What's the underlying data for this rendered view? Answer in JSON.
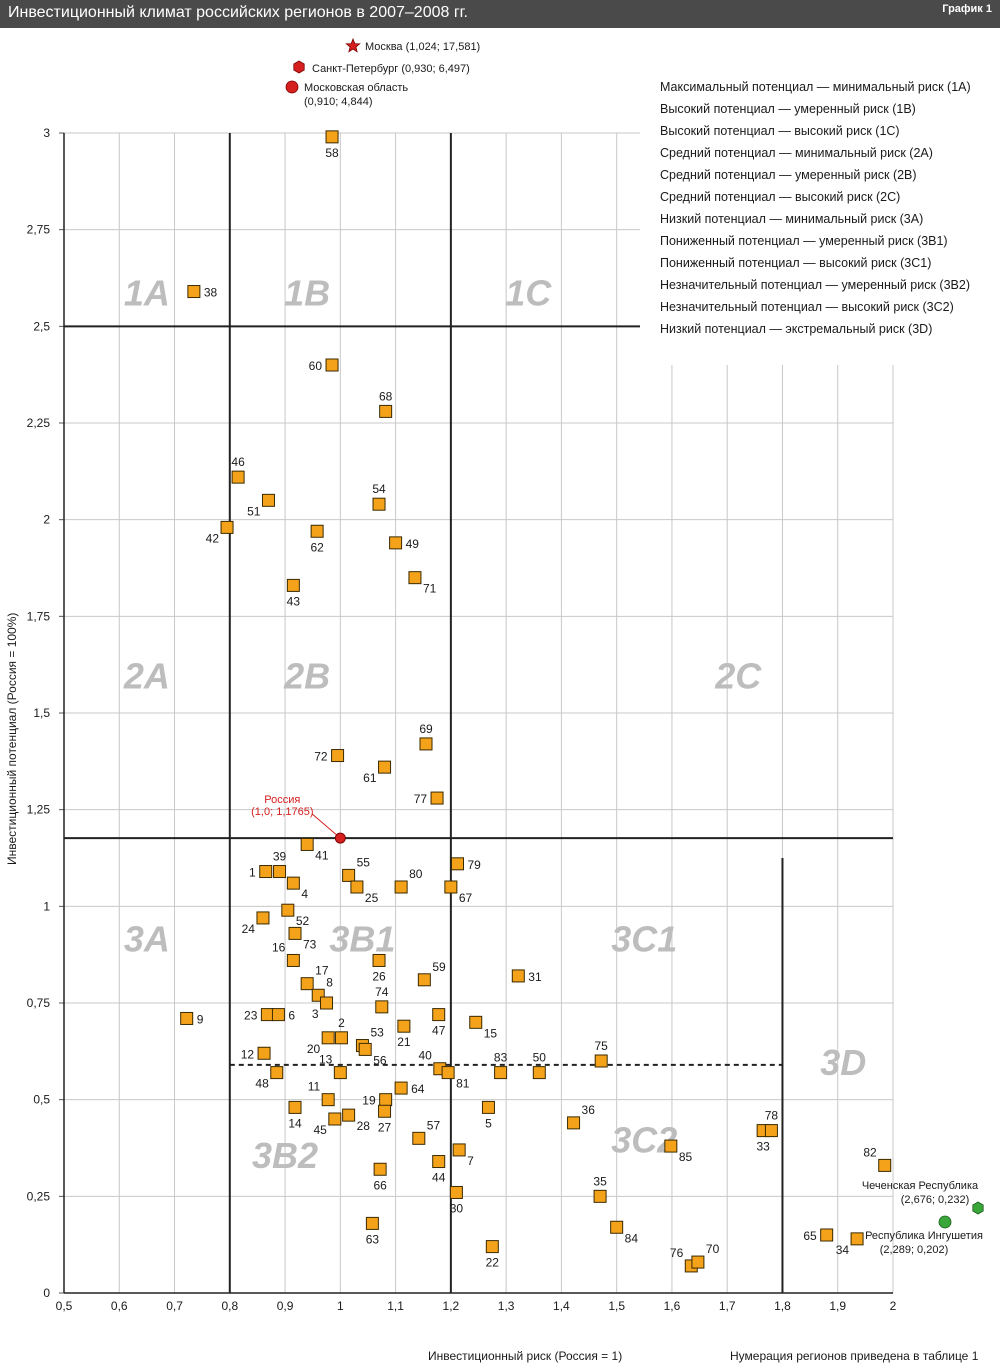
{
  "header": {
    "title": "Инвестиционный климат российских регионов в 2007–2008 гг.",
    "graph_label": "График 1"
  },
  "chart_data": {
    "type": "scatter",
    "xlabel": "Инвестиционный риск (Россия = 1)",
    "ylabel": "Инвестиционный потенциал (Россия = 100%)",
    "footnote": "Нумерация регионов приведена в таблице 1",
    "xlim": [
      0.5,
      2.0
    ],
    "ylim": [
      0,
      3
    ],
    "x_ticks": [
      "0,5",
      "0,6",
      "0,7",
      "0,8",
      "0,9",
      "1",
      "1,1",
      "1,2",
      "1,3",
      "1,4",
      "1,5",
      "1,6",
      "1,7",
      "1,8",
      "1,9",
      "2"
    ],
    "y_ticks": [
      "0",
      "0,25",
      "0,5",
      "0,75",
      "1",
      "1,25",
      "1,5",
      "1,75",
      "2",
      "2,25",
      "2,5",
      "2,75",
      "3"
    ],
    "grid": true,
    "marker_color": "#f5a21b",
    "legend": [
      "Максимальный потенциал — минимальный риск (1A)",
      "Высокий потенциал — умеренный риск (1B)",
      "Высокий потенциал — высокий риск (1C)",
      "Средний потенциал — минимальный риск (2A)",
      "Средний потенциал — умеренный риск (2B)",
      "Средний потенциал — высокий риск (2C)",
      "Низкий потенциал — минимальный риск (3A)",
      "Пониженный потенциал — умеренный риск (3B1)",
      "Пониженный потенциал — высокий риск (3C1)",
      "Незначительный потенциал — умеренный риск (3B2)",
      "Незначительный потенциал — высокий риск (3C2)",
      "Низкий потенциал — экстремальный риск (3D)"
    ],
    "zones": [
      {
        "label": "1A",
        "x": 0.65,
        "y": 2.59
      },
      {
        "label": "1B",
        "x": 0.94,
        "y": 2.59
      },
      {
        "label": "1C",
        "x": 1.34,
        "y": 2.59
      },
      {
        "label": "2A",
        "x": 0.65,
        "y": 1.6
      },
      {
        "label": "2B",
        "x": 0.94,
        "y": 1.6
      },
      {
        "label": "2C",
        "x": 1.72,
        "y": 1.6
      },
      {
        "label": "3A",
        "x": 0.65,
        "y": 0.92
      },
      {
        "label": "3B1",
        "x": 1.04,
        "y": 0.92
      },
      {
        "label": "3C1",
        "x": 1.55,
        "y": 0.92
      },
      {
        "label": "3D",
        "x": 1.91,
        "y": 0.6
      },
      {
        "label": "3B2",
        "x": 0.9,
        "y": 0.36
      },
      {
        "label": "3C2",
        "x": 1.55,
        "y": 0.4
      }
    ],
    "outliers": [
      {
        "label": "Москва (1,024; 17,581)",
        "shape": "star",
        "color": "#d62020"
      },
      {
        "label": "Санкт-Петербург (0,930; 6,497)",
        "shape": "hexagon",
        "color": "#d62020"
      },
      {
        "label": "Московская область",
        "label2": "(0,910; 4,844)",
        "shape": "circle",
        "color": "#d62020"
      }
    ],
    "russia": {
      "label": "Россия",
      "label2": "(1,0; 1,1765)",
      "x": 1.0,
      "y": 1.1765,
      "color": "#d62020"
    },
    "green_points": [
      {
        "label": "Чеченская Республика",
        "label2": "(2,676; 0,232)",
        "color": "#3aa63a"
      },
      {
        "label": "Республика Ингушетия",
        "label2": "(2,289; 0,202)",
        "color": "#3aa63a"
      }
    ],
    "points": [
      {
        "id": "58",
        "x": 0.985,
        "y": 2.99,
        "lp": "b"
      },
      {
        "id": "38",
        "x": 0.735,
        "y": 2.59,
        "lp": "r"
      },
      {
        "id": "60",
        "x": 0.985,
        "y": 2.4,
        "lp": "l"
      },
      {
        "id": "68",
        "x": 1.082,
        "y": 2.28,
        "lp": "t"
      },
      {
        "id": "46",
        "x": 0.815,
        "y": 2.11,
        "lp": "t"
      },
      {
        "id": "51",
        "x": 0.87,
        "y": 2.05,
        "lp": "bl"
      },
      {
        "id": "54",
        "x": 1.07,
        "y": 2.04,
        "lp": "t"
      },
      {
        "id": "42",
        "x": 0.795,
        "y": 1.98,
        "lp": "bl"
      },
      {
        "id": "62",
        "x": 0.958,
        "y": 1.97,
        "lp": "b"
      },
      {
        "id": "49",
        "x": 1.1,
        "y": 1.94,
        "lp": "r"
      },
      {
        "id": "71",
        "x": 1.135,
        "y": 1.85,
        "lp": "br"
      },
      {
        "id": "43",
        "x": 0.915,
        "y": 1.83,
        "lp": "b"
      },
      {
        "id": "69",
        "x": 1.155,
        "y": 1.42,
        "lp": "t"
      },
      {
        "id": "72",
        "x": 0.995,
        "y": 1.39,
        "lp": "l"
      },
      {
        "id": "61",
        "x": 1.08,
        "y": 1.36,
        "lp": "bl"
      },
      {
        "id": "77",
        "x": 1.175,
        "y": 1.28,
        "lp": "l"
      },
      {
        "id": "41",
        "x": 0.94,
        "y": 1.16,
        "lp": "br"
      },
      {
        "id": "79",
        "x": 1.212,
        "y": 1.11,
        "lp": "r"
      },
      {
        "id": "1",
        "x": 0.865,
        "y": 1.09,
        "lp": "l"
      },
      {
        "id": "39",
        "x": 0.89,
        "y": 1.09,
        "lp": "t"
      },
      {
        "id": "55",
        "x": 1.015,
        "y": 1.08,
        "lp": "tr"
      },
      {
        "id": "80",
        "x": 1.11,
        "y": 1.05,
        "lp": "tr"
      },
      {
        "id": "4",
        "x": 0.915,
        "y": 1.06,
        "lp": "br"
      },
      {
        "id": "25",
        "x": 1.03,
        "y": 1.05,
        "lp": "br"
      },
      {
        "id": "67",
        "x": 1.2,
        "y": 1.05,
        "lp": "br"
      },
      {
        "id": "52",
        "x": 0.905,
        "y": 0.99,
        "lp": "br"
      },
      {
        "id": "24",
        "x": 0.86,
        "y": 0.97,
        "lp": "bl"
      },
      {
        "id": "73",
        "x": 0.918,
        "y": 0.93,
        "lp": "br"
      },
      {
        "id": "16",
        "x": 0.915,
        "y": 0.86,
        "lp": "tl"
      },
      {
        "id": "26",
        "x": 1.07,
        "y": 0.86,
        "lp": "b"
      },
      {
        "id": "59",
        "x": 1.152,
        "y": 0.81,
        "lp": "tr"
      },
      {
        "id": "31",
        "x": 1.322,
        "y": 0.82,
        "lp": "r"
      },
      {
        "id": "17",
        "x": 0.94,
        "y": 0.8,
        "lp": "tr"
      },
      {
        "id": "8",
        "x": 0.96,
        "y": 0.77,
        "lp": "tr"
      },
      {
        "id": "74",
        "x": 1.075,
        "y": 0.74,
        "lp": "t"
      },
      {
        "id": "3",
        "x": 0.975,
        "y": 0.75,
        "lp": "bl"
      },
      {
        "id": "9",
        "x": 0.722,
        "y": 0.71,
        "lp": "r"
      },
      {
        "id": "23",
        "x": 0.868,
        "y": 0.72,
        "lp": "l"
      },
      {
        "id": "6",
        "x": 0.888,
        "y": 0.72,
        "lp": "r"
      },
      {
        "id": "47",
        "x": 1.178,
        "y": 0.72,
        "lp": "b"
      },
      {
        "id": "15",
        "x": 1.245,
        "y": 0.7,
        "lp": "br"
      },
      {
        "id": "2",
        "x": 1.002,
        "y": 0.66,
        "lp": "t"
      },
      {
        "id": "21",
        "x": 1.115,
        "y": 0.69,
        "lp": "b"
      },
      {
        "id": "20",
        "x": 0.978,
        "y": 0.66,
        "lp": "bl"
      },
      {
        "id": "53",
        "x": 1.04,
        "y": 0.64,
        "lp": "tr"
      },
      {
        "id": "56",
        "x": 1.045,
        "y": 0.63,
        "lp": "br"
      },
      {
        "id": "75",
        "x": 1.472,
        "y": 0.6,
        "lp": "t"
      },
      {
        "id": "12",
        "x": 0.862,
        "y": 0.62,
        "lp": "l"
      },
      {
        "id": "40",
        "x": 1.18,
        "y": 0.58,
        "lp": "tl"
      },
      {
        "id": "83",
        "x": 1.29,
        "y": 0.57,
        "lp": "t"
      },
      {
        "id": "50",
        "x": 1.36,
        "y": 0.57,
        "lp": "t"
      },
      {
        "id": "13",
        "x": 1.0,
        "y": 0.57,
        "lp": "tl"
      },
      {
        "id": "81",
        "x": 1.195,
        "y": 0.57,
        "lp": "br"
      },
      {
        "id": "48",
        "x": 0.885,
        "y": 0.57,
        "lp": "bl"
      },
      {
        "id": "64",
        "x": 1.11,
        "y": 0.53,
        "lp": "r"
      },
      {
        "id": "11",
        "x": 0.978,
        "y": 0.5,
        "lp": "tl"
      },
      {
        "id": "19",
        "x": 1.082,
        "y": 0.5,
        "lp": "l"
      },
      {
        "id": "27",
        "x": 1.08,
        "y": 0.47,
        "lp": "b"
      },
      {
        "id": "5",
        "x": 1.268,
        "y": 0.48,
        "lp": "b"
      },
      {
        "id": "14",
        "x": 0.918,
        "y": 0.48,
        "lp": "b"
      },
      {
        "id": "28",
        "x": 1.015,
        "y": 0.46,
        "lp": "br"
      },
      {
        "id": "45",
        "x": 0.99,
        "y": 0.45,
        "lp": "bl"
      },
      {
        "id": "36",
        "x": 1.422,
        "y": 0.44,
        "lp": "tr"
      },
      {
        "id": "57",
        "x": 1.142,
        "y": 0.4,
        "lp": "tr"
      },
      {
        "id": "7",
        "x": 1.215,
        "y": 0.37,
        "lp": "br"
      },
      {
        "id": "85",
        "x": 1.598,
        "y": 0.38,
        "lp": "br"
      },
      {
        "id": "33",
        "x": 1.765,
        "y": 0.42,
        "lp": "b"
      },
      {
        "id": "78",
        "x": 1.78,
        "y": 0.42,
        "lp": "t"
      },
      {
        "id": "44",
        "x": 1.178,
        "y": 0.34,
        "lp": "b"
      },
      {
        "id": "66",
        "x": 1.072,
        "y": 0.32,
        "lp": "b"
      },
      {
        "id": "82",
        "x": 1.985,
        "y": 0.33,
        "lp": "tl"
      },
      {
        "id": "30",
        "x": 1.21,
        "y": 0.26,
        "lp": "b"
      },
      {
        "id": "35",
        "x": 1.47,
        "y": 0.25,
        "lp": "t"
      },
      {
        "id": "63",
        "x": 1.058,
        "y": 0.18,
        "lp": "b"
      },
      {
        "id": "84",
        "x": 1.5,
        "y": 0.17,
        "lp": "br"
      },
      {
        "id": "65",
        "x": 1.88,
        "y": 0.15,
        "lp": "l"
      },
      {
        "id": "34",
        "x": 1.935,
        "y": 0.14,
        "lp": "bl"
      },
      {
        "id": "22",
        "x": 1.275,
        "y": 0.12,
        "lp": "b"
      },
      {
        "id": "76",
        "x": 1.635,
        "y": 0.07,
        "lp": "tl"
      },
      {
        "id": "70",
        "x": 1.647,
        "y": 0.08,
        "lp": "tr"
      }
    ]
  }
}
